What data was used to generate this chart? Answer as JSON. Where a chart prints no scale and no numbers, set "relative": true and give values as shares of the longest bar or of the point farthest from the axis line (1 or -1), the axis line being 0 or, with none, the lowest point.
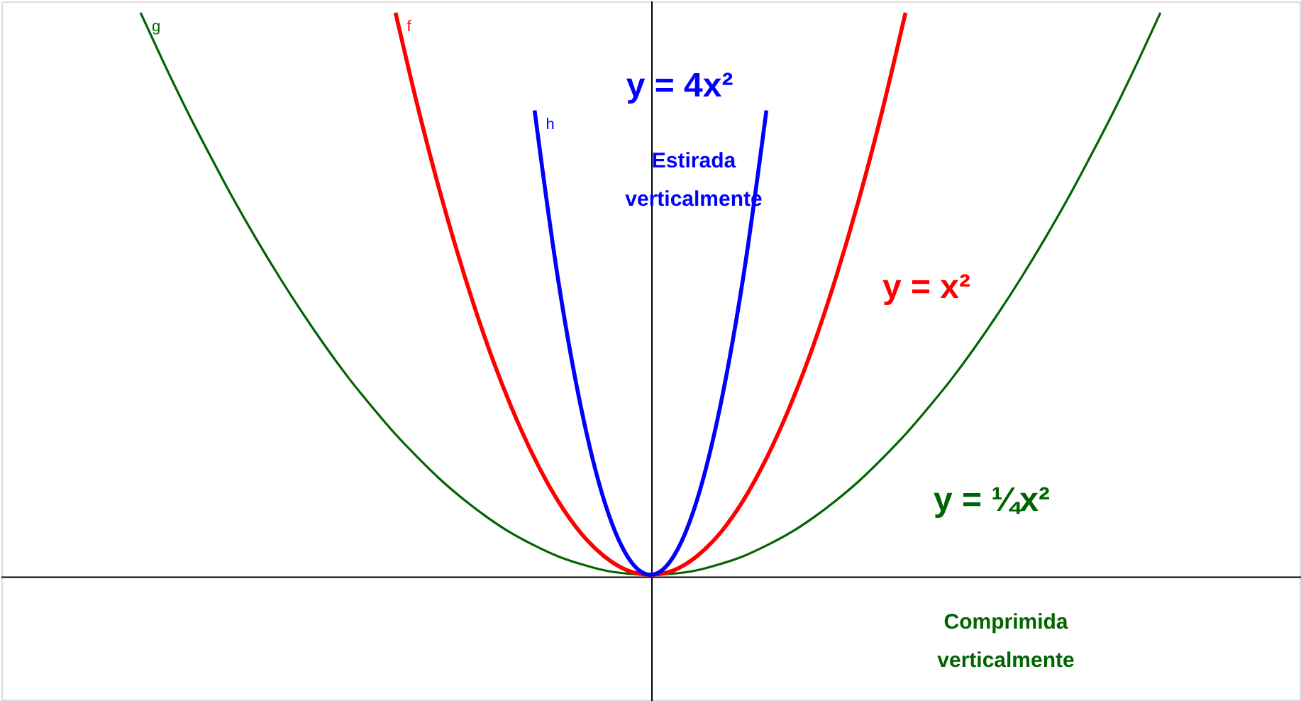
{
  "chart_data": {
    "type": "line",
    "relative": true,
    "marker": "none",
    "line_style": "solid",
    "categories": [
      null,
      null,
      null,
      null,
      null,
      null,
      null,
      null,
      null,
      null,
      null,
      null,
      null,
      null,
      null,
      null,
      null,
      null,
      null,
      null,
      null,
      null,
      null,
      null,
      null,
      null,
      null,
      null,
      null,
      null,
      null,
      null,
      null,
      null,
      null,
      null,
      null,
      null,
      null,
      null,
      null,
      null,
      null,
      null,
      null,
      null,
      null,
      null,
      null,
      null,
      null,
      null,
      null,
      null,
      null,
      null,
      null
    ],
    "series": [
      {
        "name": "g",
        "color": "#006400",
        "values": [
          null,
          null,
          null,
          null,
          null,
          null,
          1,
          0.911,
          0.826,
          0.746,
          0.669,
          0.597,
          0.529,
          0.465,
          0.405,
          0.349,
          0.298,
          0.25,
          0.207,
          0.167,
          0.132,
          0.101,
          0.074,
          0.052,
          0.033,
          0.019,
          0.008,
          0.002,
          0,
          0.002,
          0.008,
          0.019,
          0.033,
          0.052,
          0.074,
          0.101,
          0.132,
          0.167,
          0.207,
          0.25,
          0.298,
          0.349,
          0.405,
          0.465,
          0.529,
          0.597,
          0.669,
          0.746,
          0.826,
          0.911,
          1,
          null,
          null,
          null,
          null,
          null,
          null
        ]
      },
      {
        "name": "f",
        "color": "#ff0000",
        "values": [
          null,
          null,
          null,
          null,
          null,
          null,
          null,
          null,
          null,
          null,
          null,
          null,
          null,
          null,
          null,
          null,
          null,
          1,
          0.826,
          0.669,
          0.529,
          0.405,
          0.298,
          0.207,
          0.132,
          0.074,
          0.033,
          0.008,
          0,
          0.008,
          0.033,
          0.074,
          0.132,
          0.207,
          0.298,
          0.405,
          0.529,
          0.669,
          0.826,
          1,
          null,
          null,
          null,
          null,
          null,
          null,
          null,
          null,
          null,
          null,
          null,
          null,
          null,
          null,
          null,
          null,
          null
        ]
      },
      {
        "name": "h",
        "color": "#0000ff",
        "values": [
          null,
          null,
          null,
          null,
          null,
          null,
          null,
          null,
          null,
          null,
          null,
          null,
          null,
          null,
          null,
          null,
          null,
          null,
          null,
          null,
          null,
          null,
          null,
          0.826,
          0.529,
          0.298,
          0.132,
          0.033,
          0,
          0.033,
          0.132,
          0.298,
          0.529,
          0.826,
          null,
          null,
          null,
          null,
          null,
          null,
          null,
          null,
          null,
          null,
          null,
          null,
          null,
          null,
          null,
          null,
          null,
          null,
          null,
          null,
          null,
          null,
          null
        ]
      }
    ],
    "annotations": [
      "y = 4x²",
      "Estirada\nverticalmente",
      "y = x²",
      "y = ¼x²",
      "Comprimida\nverticalmente"
    ]
  }
}
